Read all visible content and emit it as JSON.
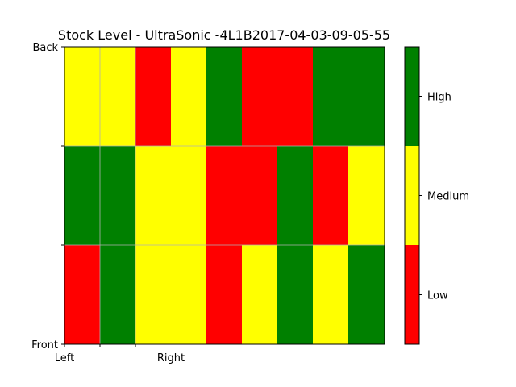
{
  "chart_data": {
    "type": "heatmap",
    "title": "Stock Level - UltraSonic -4L1B2017-04-03-09-05-55",
    "xlabel": "",
    "ylabel": "",
    "x_tick_labels": [
      "Left",
      "",
      "Right"
    ],
    "y_tick_labels": [
      "Front",
      "",
      "",
      "Back"
    ],
    "levels": [
      "Low",
      "Medium",
      "High"
    ],
    "level_colors": {
      "Low": "#ff0000",
      "Medium": "#ffff00",
      "High": "#008000"
    },
    "grid": true,
    "colorbar_placement": "right",
    "rows_top_to_bottom": [
      [
        "Medium",
        "Medium",
        "Low",
        "Medium",
        "High",
        "Low",
        "Low",
        "High",
        "High"
      ],
      [
        "High",
        "High",
        "Medium",
        "Medium",
        "Low",
        "Low",
        "High",
        "Low",
        "Medium"
      ],
      [
        "Low",
        "High",
        "Medium",
        "Medium",
        "Low",
        "Medium",
        "High",
        "Medium",
        "High"
      ]
    ]
  }
}
